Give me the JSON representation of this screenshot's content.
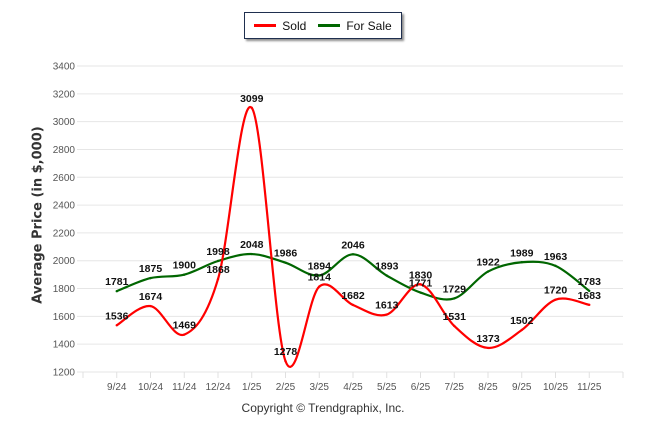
{
  "chart_data": {
    "type": "line",
    "title": "",
    "xlabel": "",
    "ylabel": "Average Price (in $,000)",
    "ylim": [
      1200,
      3400
    ],
    "yticks": [
      1200,
      1400,
      1600,
      1800,
      2000,
      2200,
      2400,
      2600,
      2800,
      3000,
      3200,
      3400
    ],
    "grid": true,
    "legend_position": "top-center",
    "categories": [
      "9/24",
      "10/24",
      "11/24",
      "12/24",
      "1/25",
      "2/25",
      "3/25",
      "4/25",
      "5/25",
      "6/25",
      "7/25",
      "8/25",
      "9/25",
      "10/25",
      "11/25"
    ],
    "series": [
      {
        "name": "Sold",
        "color": "#ff0000",
        "values": [
          1536,
          1674,
          1469,
          1868,
          3099,
          1278,
          1814,
          1682,
          1613,
          1830,
          1531,
          1373,
          1502,
          1720,
          1683
        ]
      },
      {
        "name": "For Sale",
        "color": "#006600",
        "values": [
          1781,
          1875,
          1900,
          1998,
          2048,
          1986,
          1894,
          2046,
          1893,
          1771,
          1729,
          1922,
          1989,
          1963,
          1783
        ]
      }
    ]
  },
  "legend": {
    "items": [
      {
        "label": "Sold",
        "color": "#ff0000"
      },
      {
        "label": "For Sale",
        "color": "#006600"
      }
    ]
  },
  "footer": {
    "copyright": "Copyright © Trendgraphix, Inc."
  }
}
